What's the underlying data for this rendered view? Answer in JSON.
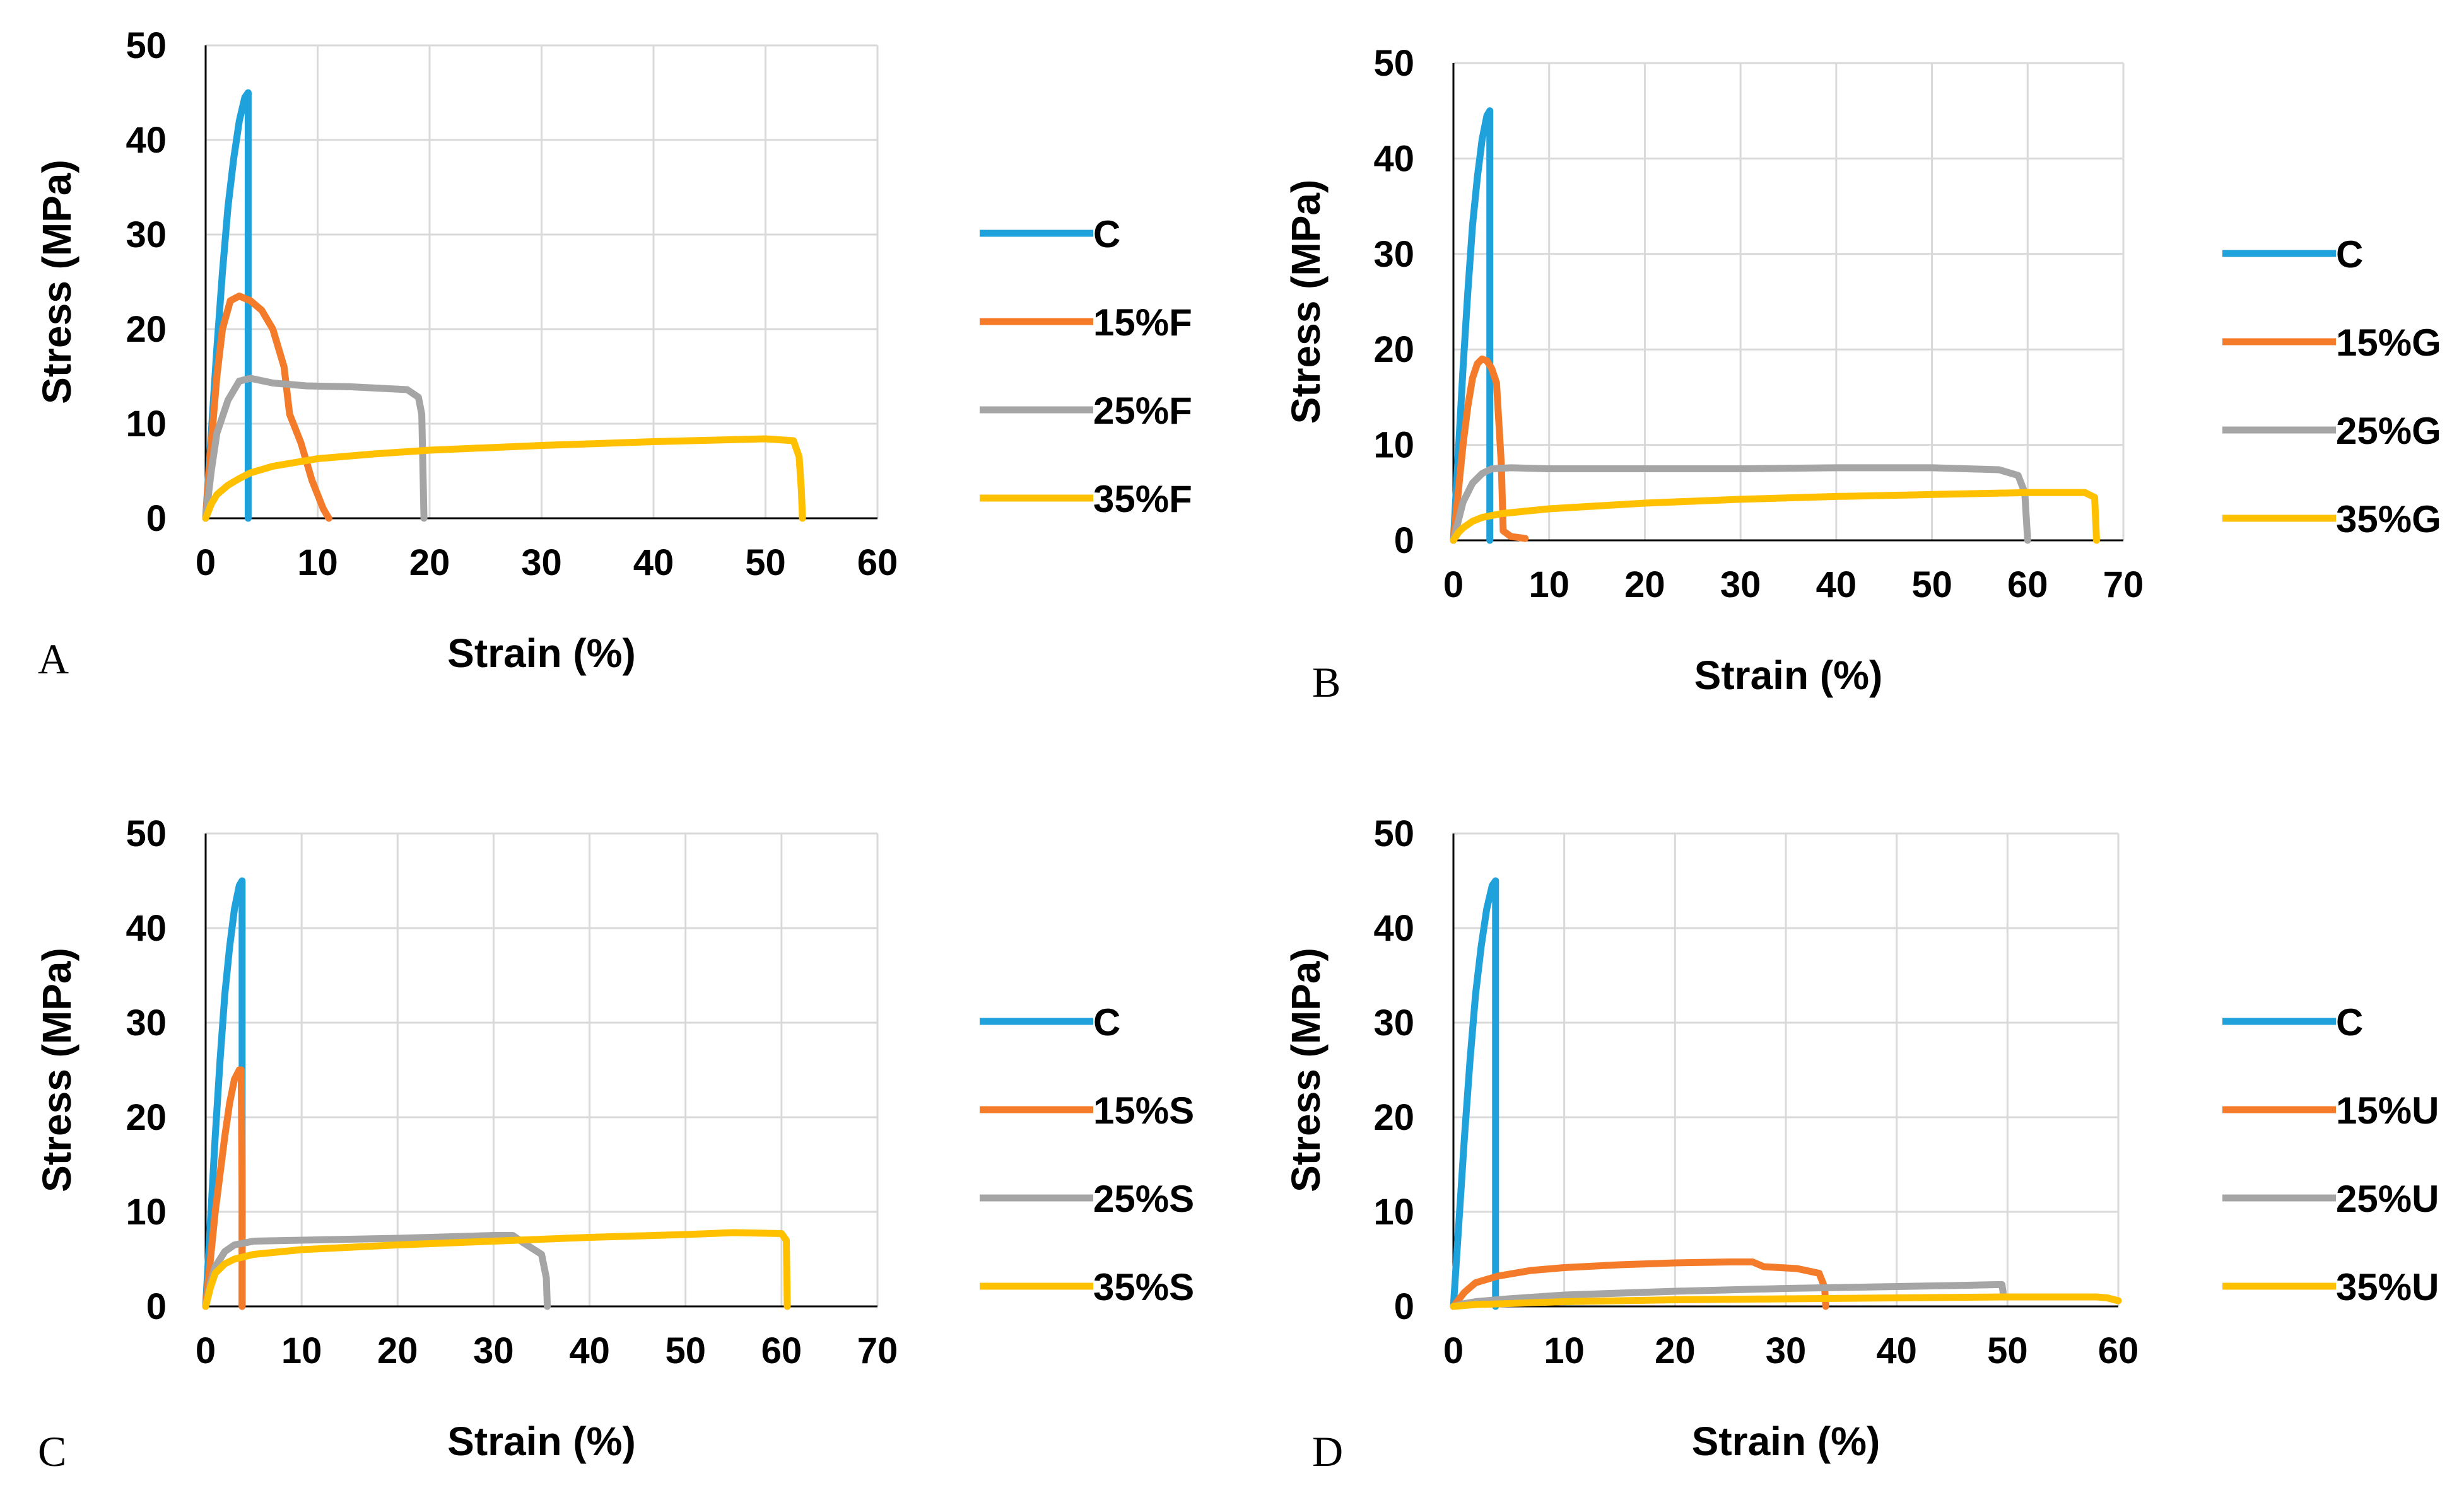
{
  "chart_data": [
    {
      "type": "line",
      "panel_label": "A",
      "xlabel": "Strain (%)",
      "ylabel": "Stress (MPa)",
      "xlim": [
        0,
        60
      ],
      "ylim": [
        0,
        50
      ],
      "xticks": [
        "0",
        "10",
        "20",
        "30",
        "40",
        "50",
        "60"
      ],
      "yticks": [
        "0",
        "10",
        "20",
        "30",
        "40",
        "50"
      ],
      "grid": true,
      "legend": "right",
      "series": [
        {
          "name": "C",
          "color": "#1FA1DB",
          "points": [
            [
              0,
              0
            ],
            [
              0.5,
              9
            ],
            [
              1,
              18
            ],
            [
              1.5,
              26
            ],
            [
              2,
              33
            ],
            [
              2.5,
              38
            ],
            [
              3,
              42
            ],
            [
              3.5,
              44.5
            ],
            [
              3.8,
              45
            ],
            [
              3.8,
              0
            ]
          ]
        },
        {
          "name": "15%F",
          "color": "#F47B2A",
          "points": [
            [
              0,
              0
            ],
            [
              0.5,
              8
            ],
            [
              1,
              15
            ],
            [
              1.5,
              20
            ],
            [
              2.2,
              23
            ],
            [
              3,
              23.5
            ],
            [
              4,
              23
            ],
            [
              5,
              22
            ],
            [
              6,
              20
            ],
            [
              7,
              16
            ],
            [
              7.5,
              11
            ],
            [
              8.5,
              8
            ],
            [
              9.5,
              4
            ],
            [
              10.5,
              1
            ],
            [
              11,
              0
            ]
          ]
        },
        {
          "name": "25%F",
          "color": "#A5A5A5",
          "points": [
            [
              0,
              0
            ],
            [
              0.5,
              5
            ],
            [
              1,
              9
            ],
            [
              2,
              12.5
            ],
            [
              3,
              14.5
            ],
            [
              4,
              14.8
            ],
            [
              6,
              14.3
            ],
            [
              9,
              14
            ],
            [
              13,
              13.9
            ],
            [
              18,
              13.6
            ],
            [
              19,
              12.8
            ],
            [
              19.3,
              11
            ],
            [
              19.5,
              0
            ]
          ]
        },
        {
          "name": "35%F",
          "color": "#FFC000",
          "points": [
            [
              0,
              0
            ],
            [
              0.5,
              1.5
            ],
            [
              1,
              2.5
            ],
            [
              2,
              3.5
            ],
            [
              3,
              4.2
            ],
            [
              4,
              4.8
            ],
            [
              6,
              5.5
            ],
            [
              10,
              6.3
            ],
            [
              15,
              6.8
            ],
            [
              20,
              7.2
            ],
            [
              30,
              7.7
            ],
            [
              40,
              8.1
            ],
            [
              50,
              8.4
            ],
            [
              52.5,
              8.2
            ],
            [
              53,
              6.5
            ],
            [
              53.2,
              3
            ],
            [
              53.3,
              0
            ]
          ]
        }
      ]
    },
    {
      "type": "line",
      "panel_label": "B",
      "xlabel": "Strain (%)",
      "ylabel": "Stress (MPa)",
      "xlim": [
        0,
        70
      ],
      "ylim": [
        0,
        50
      ],
      "xticks": [
        "0",
        "10",
        "20",
        "30",
        "40",
        "50",
        "60",
        "70"
      ],
      "yticks": [
        "0",
        "10",
        "20",
        "30",
        "40",
        "50"
      ],
      "grid": true,
      "legend": "right",
      "series": [
        {
          "name": "C",
          "color": "#1FA1DB",
          "points": [
            [
              0,
              0
            ],
            [
              0.5,
              9
            ],
            [
              1,
              18
            ],
            [
              1.5,
              26
            ],
            [
              2,
              33
            ],
            [
              2.5,
              38
            ],
            [
              3,
              42
            ],
            [
              3.5,
              44.5
            ],
            [
              3.8,
              45
            ],
            [
              3.8,
              0
            ]
          ]
        },
        {
          "name": "15%G",
          "color": "#F47B2A",
          "points": [
            [
              0,
              0
            ],
            [
              0.5,
              5
            ],
            [
              1,
              10
            ],
            [
              1.5,
              14
            ],
            [
              2,
              17
            ],
            [
              2.5,
              18.5
            ],
            [
              3,
              19
            ],
            [
              3.5,
              18.8
            ],
            [
              4,
              18
            ],
            [
              4.5,
              16.5
            ],
            [
              5,
              8
            ],
            [
              5.2,
              1
            ],
            [
              6,
              0.4
            ],
            [
              7.5,
              0.2
            ]
          ]
        },
        {
          "name": "25%G",
          "color": "#A5A5A5",
          "points": [
            [
              0,
              0
            ],
            [
              0.5,
              2
            ],
            [
              1,
              4
            ],
            [
              2,
              6
            ],
            [
              3,
              7
            ],
            [
              4,
              7.5
            ],
            [
              6,
              7.6
            ],
            [
              10,
              7.5
            ],
            [
              20,
              7.5
            ],
            [
              30,
              7.5
            ],
            [
              40,
              7.6
            ],
            [
              50,
              7.6
            ],
            [
              57,
              7.4
            ],
            [
              59,
              6.8
            ],
            [
              59.7,
              5
            ],
            [
              60,
              0
            ]
          ]
        },
        {
          "name": "35%G",
          "color": "#FFC000",
          "points": [
            [
              0,
              0
            ],
            [
              0.5,
              0.8
            ],
            [
              1,
              1.3
            ],
            [
              2,
              2
            ],
            [
              3,
              2.4
            ],
            [
              5,
              2.8
            ],
            [
              10,
              3.3
            ],
            [
              20,
              3.9
            ],
            [
              30,
              4.3
            ],
            [
              40,
              4.6
            ],
            [
              50,
              4.8
            ],
            [
              60,
              5
            ],
            [
              66,
              5
            ],
            [
              67,
              4.5
            ],
            [
              67.2,
              0
            ]
          ]
        }
      ]
    },
    {
      "type": "line",
      "panel_label": "C",
      "xlabel": "Strain (%)",
      "ylabel": "Stress (MPa)",
      "xlim": [
        0,
        70
      ],
      "ylim": [
        0,
        50
      ],
      "xticks": [
        "0",
        "10",
        "20",
        "30",
        "40",
        "50",
        "60",
        "70"
      ],
      "yticks": [
        "0",
        "10",
        "20",
        "30",
        "40",
        "50"
      ],
      "grid": true,
      "legend": "right",
      "series": [
        {
          "name": "C",
          "color": "#1FA1DB",
          "points": [
            [
              0,
              0
            ],
            [
              0.5,
              9
            ],
            [
              1,
              18
            ],
            [
              1.5,
              26
            ],
            [
              2,
              33
            ],
            [
              2.5,
              38
            ],
            [
              3,
              42
            ],
            [
              3.5,
              44.5
            ],
            [
              3.8,
              45
            ],
            [
              3.8,
              0
            ]
          ]
        },
        {
          "name": "15%S",
          "color": "#F47B2A",
          "points": [
            [
              0,
              0
            ],
            [
              0.5,
              5
            ],
            [
              1,
              10
            ],
            [
              1.5,
              14
            ],
            [
              2,
              18
            ],
            [
              2.5,
              21.5
            ],
            [
              3,
              24
            ],
            [
              3.5,
              25
            ],
            [
              3.7,
              25
            ],
            [
              3.8,
              12
            ],
            [
              3.8,
              0
            ]
          ]
        },
        {
          "name": "25%S",
          "color": "#A5A5A5",
          "points": [
            [
              0,
              0
            ],
            [
              0.5,
              2.5
            ],
            [
              1,
              4.2
            ],
            [
              2,
              5.8
            ],
            [
              3,
              6.5
            ],
            [
              5,
              6.9
            ],
            [
              10,
              7
            ],
            [
              20,
              7.2
            ],
            [
              30,
              7.5
            ],
            [
              32,
              7.5
            ],
            [
              33,
              6.8
            ],
            [
              35,
              5.5
            ],
            [
              35.5,
              3
            ],
            [
              35.6,
              0
            ]
          ]
        },
        {
          "name": "35%S",
          "color": "#FFC000",
          "points": [
            [
              0,
              0
            ],
            [
              0.5,
              2
            ],
            [
              1,
              3.5
            ],
            [
              2,
              4.5
            ],
            [
              3,
              5
            ],
            [
              5,
              5.5
            ],
            [
              10,
              6
            ],
            [
              20,
              6.5
            ],
            [
              30,
              6.9
            ],
            [
              40,
              7.3
            ],
            [
              50,
              7.6
            ],
            [
              55,
              7.8
            ],
            [
              60,
              7.7
            ],
            [
              60.5,
              7
            ],
            [
              60.6,
              0
            ]
          ]
        }
      ]
    },
    {
      "type": "line",
      "panel_label": "D",
      "xlabel": "Strain (%)",
      "ylabel": "Stress (MPa)",
      "xlim": [
        0,
        60
      ],
      "ylim": [
        0,
        50
      ],
      "xticks": [
        "0",
        "10",
        "20",
        "30",
        "40",
        "50",
        "60"
      ],
      "yticks": [
        "0",
        "10",
        "20",
        "30",
        "40",
        "50"
      ],
      "grid": true,
      "legend": "right",
      "series": [
        {
          "name": "C",
          "color": "#1FA1DB",
          "points": [
            [
              0,
              0
            ],
            [
              0.5,
              9
            ],
            [
              1,
              18
            ],
            [
              1.5,
              26
            ],
            [
              2,
              33
            ],
            [
              2.5,
              38
            ],
            [
              3,
              42
            ],
            [
              3.5,
              44.5
            ],
            [
              3.8,
              45
            ],
            [
              3.8,
              0
            ]
          ]
        },
        {
          "name": "15%U",
          "color": "#F47B2A",
          "points": [
            [
              0,
              0
            ],
            [
              1,
              1.5
            ],
            [
              2,
              2.5
            ],
            [
              4,
              3.2
            ],
            [
              7,
              3.8
            ],
            [
              10,
              4.1
            ],
            [
              15,
              4.4
            ],
            [
              20,
              4.6
            ],
            [
              25,
              4.7
            ],
            [
              27,
              4.7
            ],
            [
              28,
              4.2
            ],
            [
              31,
              4
            ],
            [
              33,
              3.5
            ],
            [
              33.5,
              2
            ],
            [
              33.6,
              0
            ]
          ]
        },
        {
          "name": "25%U",
          "color": "#A5A5A5",
          "points": [
            [
              0,
              0
            ],
            [
              1,
              0.3
            ],
            [
              2,
              0.5
            ],
            [
              5,
              0.8
            ],
            [
              10,
              1.2
            ],
            [
              20,
              1.6
            ],
            [
              30,
              1.9
            ],
            [
              40,
              2.1
            ],
            [
              45,
              2.2
            ],
            [
              49,
              2.3
            ],
            [
              49.5,
              2.3
            ],
            [
              49.6,
              1.5
            ]
          ]
        },
        {
          "name": "35%U",
          "color": "#FFC000",
          "points": [
            [
              0,
              0
            ],
            [
              1,
              0.1
            ],
            [
              2,
              0.2
            ],
            [
              5,
              0.3
            ],
            [
              10,
              0.5
            ],
            [
              20,
              0.7
            ],
            [
              30,
              0.8
            ],
            [
              40,
              0.9
            ],
            [
              50,
              1
            ],
            [
              55,
              1
            ],
            [
              58,
              1
            ],
            [
              59,
              0.9
            ],
            [
              60,
              0.6
            ]
          ]
        }
      ]
    }
  ]
}
